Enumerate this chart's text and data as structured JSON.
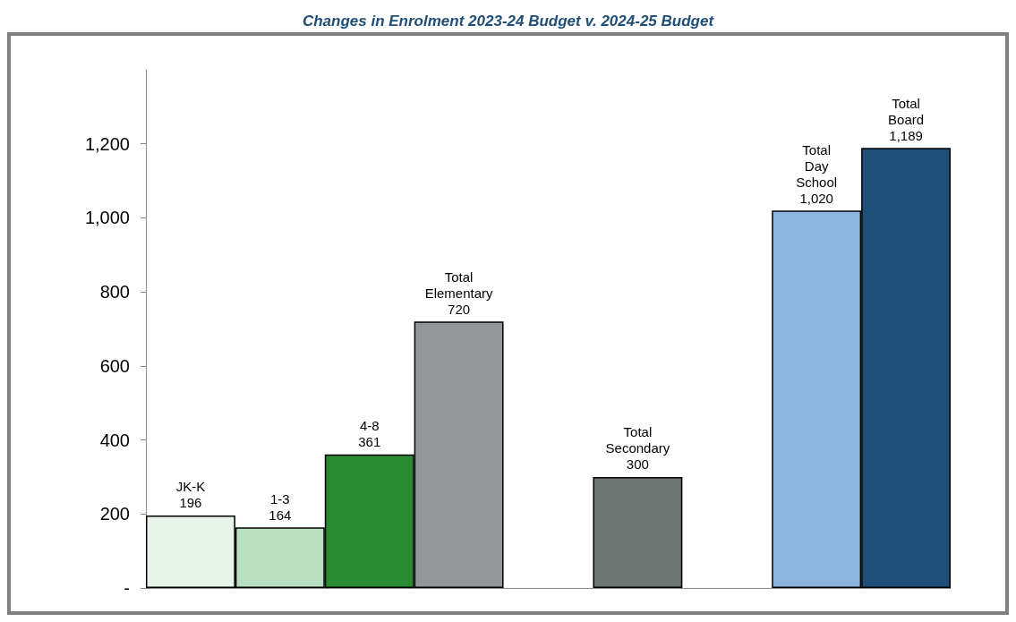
{
  "chart_data": {
    "type": "bar",
    "title": "Changes in Enrolment 2023-24 Budget v. 2024-25 Budget",
    "categories": [
      null,
      null,
      null,
      null,
      null,
      null,
      null,
      null,
      null
    ],
    "values": [
      196,
      164,
      361,
      720,
      null,
      300,
      null,
      1020,
      1189
    ],
    "colors": [
      "#e8f3ea",
      "#b7dfc0",
      "#2a8a32",
      "#939798",
      null,
      "#6e7472",
      null,
      "#8db6df",
      "#1f4e79"
    ],
    "value_labels": [
      "JK-K\n196",
      "1-3\n164",
      "4-8\n361",
      "Total\nElementary\n720",
      null,
      "Total\nSecondary\n300",
      null,
      "Total\nDay\nSchool\n1,020",
      "Total\nBoard\n1,189"
    ],
    "ylim": [
      0,
      1400
    ],
    "yticks": [
      {
        "value": 0,
        "label": "-"
      },
      200,
      400,
      600,
      800,
      {
        "value": 1000,
        "label": "1,000"
      },
      {
        "value": 1200,
        "label": "1,200"
      }
    ],
    "grid": false
  }
}
